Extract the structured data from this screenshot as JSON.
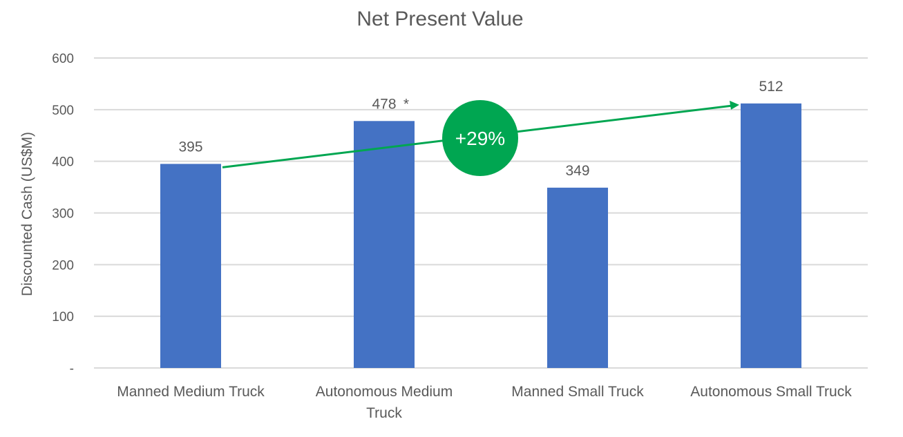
{
  "chart_data": {
    "type": "bar",
    "title": "Net Present Value",
    "xlabel": "",
    "ylabel": "Discounted Cash (US$M)",
    "ylim": [
      0,
      600
    ],
    "yticks": [
      0,
      100,
      200,
      300,
      400,
      500,
      600
    ],
    "ytick_labels": [
      "-",
      "100",
      "200",
      "300",
      "400",
      "500",
      "600"
    ],
    "grid": true,
    "categories": [
      [
        "Manned Medium Truck"
      ],
      [
        "Autonomous Medium",
        "Truck"
      ],
      [
        "Manned Small Truck"
      ],
      [
        "Autonomous Small Truck"
      ]
    ],
    "values": [
      395,
      478,
      349,
      512
    ],
    "data_labels": [
      "395",
      "478",
      "349",
      "512"
    ],
    "annotations": {
      "asterisk": "*",
      "arrow_from_category": 0,
      "arrow_to_category": 3,
      "badge_text": "+29%"
    },
    "colors": {
      "bar": "#4472C4",
      "accent": "#00A651",
      "grid": "#D9D9D9",
      "text": "#595959"
    }
  }
}
